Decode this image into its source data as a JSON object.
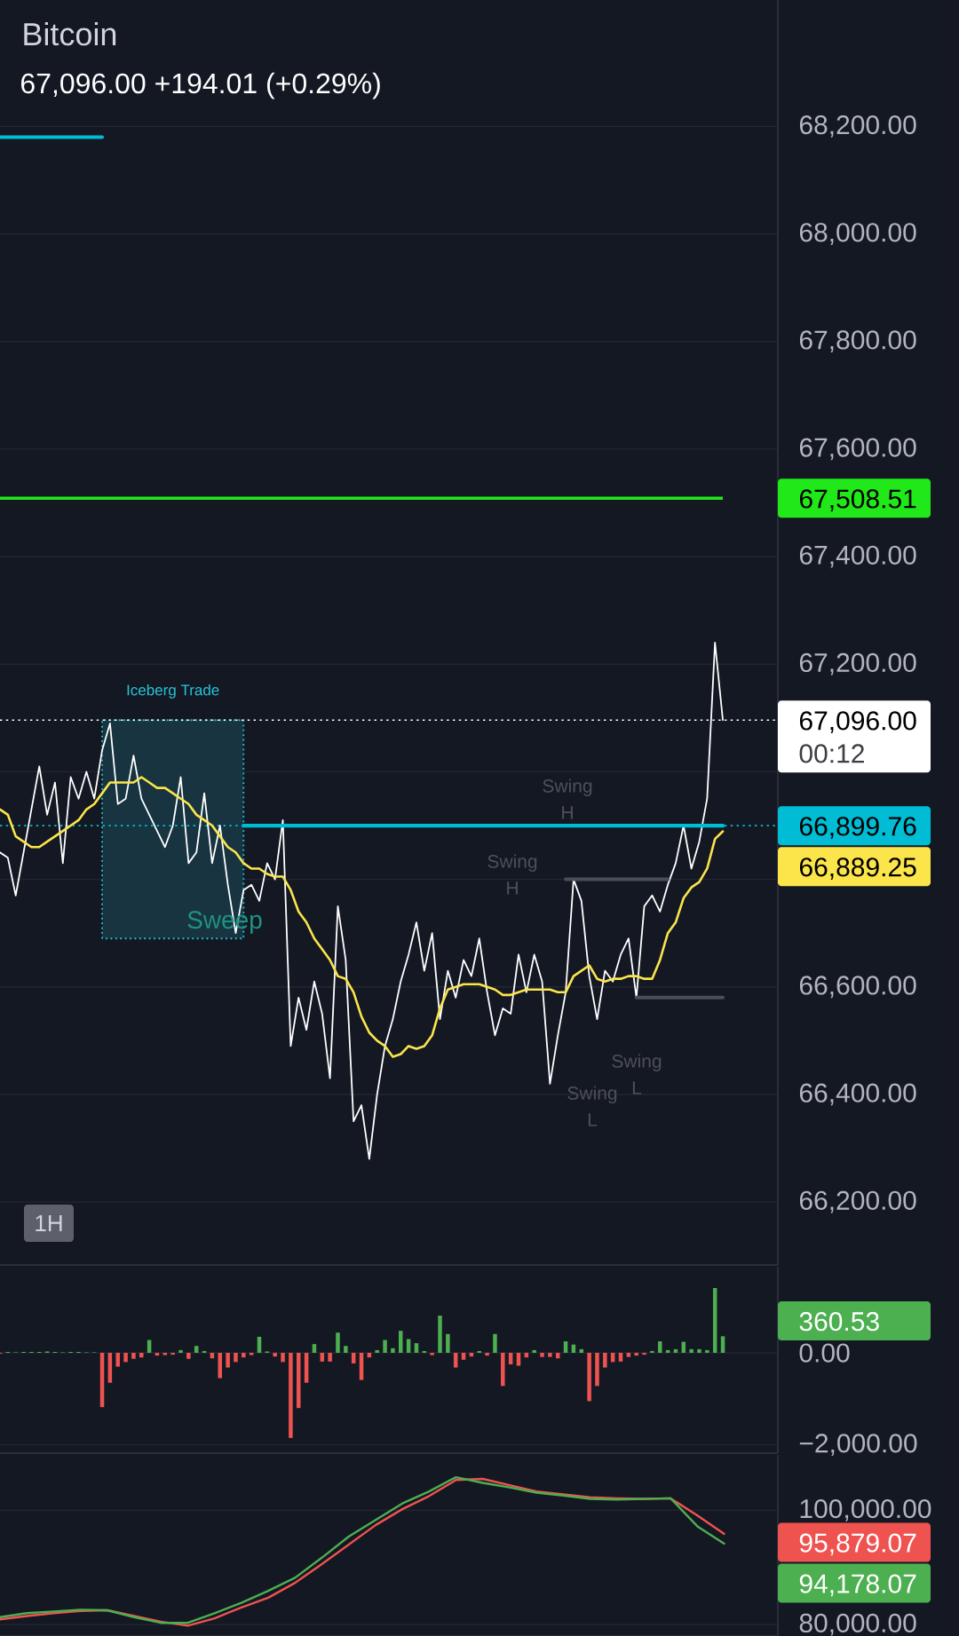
{
  "chart_data": [
    {
      "type": "line",
      "title": "Bitcoin",
      "subtitle": "67,096.00 +194.01 (+0.29%)",
      "categories": [
        null,
        null,
        null,
        null,
        null,
        null,
        null,
        null,
        null,
        null,
        null,
        null,
        null,
        null,
        null,
        null,
        null,
        null,
        null,
        null,
        null,
        null,
        null,
        null,
        null,
        null,
        null,
        null,
        null,
        null,
        null,
        null,
        null,
        null,
        null,
        null,
        null,
        null,
        null,
        null,
        null,
        null,
        null,
        null,
        null,
        null,
        null,
        null,
        null,
        null,
        null,
        null,
        null,
        null,
        null,
        null,
        null,
        null,
        null,
        null,
        null,
        null,
        null,
        null,
        null,
        null,
        null,
        null,
        null,
        null,
        null,
        null,
        null,
        null,
        null,
        null,
        null,
        null,
        null,
        null,
        null,
        null,
        null,
        null,
        null,
        null,
        null,
        null,
        null,
        null,
        null,
        null,
        null,
        null,
        null,
        null,
        null,
        null,
        null,
        null
      ],
      "series": [
        {
          "color": "#ffffff",
          "values": [
            66850,
            66840,
            66770,
            66850,
            66930,
            67010,
            66920,
            66980,
            66830,
            66990,
            66950,
            67000,
            66950,
            67040,
            67090,
            66940,
            66950,
            67030,
            66950,
            66920,
            66890,
            66860,
            66900,
            66990,
            66830,
            66850,
            66960,
            66830,
            66900,
            66790,
            66700,
            66780,
            66790,
            66760,
            66830,
            66800,
            66910,
            66490,
            66580,
            66520,
            66610,
            66550,
            66430,
            66750,
            66650,
            66350,
            66380,
            66280,
            66400,
            66490,
            66540,
            66610,
            66660,
            66720,
            66630,
            66700,
            66540,
            66630,
            66580,
            66650,
            66620,
            66690,
            66590,
            66510,
            66560,
            66550,
            66660,
            66590,
            66660,
            66610,
            66420,
            66510,
            66590,
            66800,
            66760,
            66620,
            66540,
            66630,
            66610,
            66660,
            66690,
            66580,
            66750,
            66770,
            66740,
            66790,
            66830,
            66900,
            66820,
            66870,
            66950,
            67240,
            67096,
            null,
            null,
            null,
            null,
            null,
            null,
            null
          ]
        },
        {
          "color": "#fbe54b",
          "values": [
            66930,
            66920,
            66880,
            66870,
            66860,
            66860,
            66870,
            66880,
            66890,
            66900,
            66910,
            66930,
            66940,
            66960,
            66980,
            66980,
            66980,
            66980,
            66990,
            66980,
            66970,
            66970,
            66960,
            66950,
            66940,
            66920,
            66910,
            66900,
            66880,
            66860,
            66850,
            66830,
            66820,
            66820,
            66810,
            66805,
            66805,
            66780,
            66740,
            66720,
            66690,
            66670,
            66650,
            66620,
            66615,
            66590,
            66545,
            66515,
            66500,
            66490,
            66470,
            66475,
            66490,
            66485,
            66490,
            66510,
            66560,
            66595,
            66600,
            66605,
            66605,
            66605,
            66600,
            66595,
            66585,
            66585,
            66590,
            66595,
            66595,
            66595,
            66595,
            66590,
            66590,
            66620,
            66630,
            66640,
            66615,
            66610,
            66615,
            66615,
            66620,
            66620,
            66615,
            66615,
            66650,
            66700,
            66720,
            66765,
            66785,
            66795,
            66820,
            66875,
            66889.25,
            null,
            null,
            null,
            null,
            null,
            null,
            null
          ]
        },
        {
          "color": "#00bcd4",
          "values": [
            68180,
            68180,
            68180,
            68180,
            68180,
            68180,
            68180,
            68180,
            68180,
            68180,
            68180,
            68180,
            68180,
            68180,
            null,
            null,
            null,
            null,
            null,
            null,
            null,
            null,
            null,
            null,
            null,
            null,
            null,
            null,
            null,
            null,
            null,
            null,
            null,
            null,
            null,
            null,
            null,
            null,
            null,
            null,
            null,
            null,
            null,
            null,
            null,
            null,
            null,
            null,
            null,
            null,
            null,
            null,
            null,
            null,
            null,
            null,
            null,
            null,
            null,
            null,
            null,
            null,
            null,
            null,
            null,
            null,
            null,
            null,
            null,
            null,
            null,
            null,
            null,
            null,
            null,
            null,
            null,
            null,
            null,
            null,
            null,
            null,
            null,
            null,
            null,
            null,
            null,
            null,
            null,
            null,
            null,
            null,
            null,
            null,
            null,
            null,
            null,
            null,
            null,
            null
          ]
        },
        {
          "color": "#00bcd4",
          "values": [
            null,
            null,
            null,
            null,
            null,
            null,
            null,
            null,
            null,
            null,
            null,
            null,
            null,
            null,
            null,
            null,
            null,
            null,
            null,
            null,
            null,
            null,
            null,
            null,
            null,
            null,
            null,
            null,
            null,
            null,
            null,
            66899.76,
            66899.76,
            66899.76,
            66899.76,
            66899.76,
            66899.76,
            66899.76,
            66899.76,
            66899.76,
            66899.76,
            66899.76,
            66899.76,
            66899.76,
            66899.76,
            66899.76,
            66899.76,
            66899.76,
            66899.76,
            66899.76,
            66899.76,
            66899.76,
            66899.76,
            66899.76,
            66899.76,
            66899.76,
            66899.76,
            66899.76,
            66899.76,
            66899.76,
            66899.76,
            66899.76,
            66899.76,
            66899.76,
            66899.76,
            66899.76,
            66899.76,
            66899.76,
            66899.76,
            66899.76,
            66899.76,
            66899.76,
            66899.76,
            66899.76,
            66899.76,
            66899.76,
            66899.76,
            66899.76,
            66899.76,
            66899.76,
            66899.76,
            66899.76,
            66899.76,
            66899.76,
            66899.76,
            66899.76,
            66899.76,
            66899.76,
            66899.76,
            66899.76,
            66899.76,
            66899.76,
            66899.76,
            null,
            null,
            null,
            null,
            null,
            null,
            null
          ]
        },
        {
          "color": "#4a4e59",
          "values": [
            null,
            null,
            null,
            null,
            null,
            null,
            null,
            null,
            null,
            null,
            null,
            null,
            null,
            null,
            null,
            null,
            null,
            null,
            null,
            null,
            null,
            null,
            null,
            null,
            null,
            null,
            null,
            null,
            null,
            null,
            null,
            null,
            null,
            null,
            null,
            null,
            null,
            null,
            null,
            null,
            null,
            null,
            null,
            null,
            null,
            null,
            null,
            null,
            null,
            null,
            null,
            null,
            null,
            null,
            null,
            null,
            null,
            null,
            null,
            null,
            null,
            null,
            null,
            null,
            null,
            null,
            null,
            null,
            null,
            null,
            null,
            null,
            66800,
            66800,
            66800,
            66800,
            66800,
            66800,
            66800,
            66800,
            66800,
            66800,
            66800,
            66800,
            66800,
            66800,
            null,
            null,
            null,
            null,
            null,
            null,
            null,
            null,
            null,
            null,
            null,
            null,
            null,
            null
          ]
        },
        {
          "color": "#4a4e59",
          "values": [
            null,
            null,
            null,
            null,
            null,
            null,
            null,
            null,
            null,
            null,
            null,
            null,
            null,
            null,
            null,
            null,
            null,
            null,
            null,
            null,
            null,
            null,
            null,
            null,
            null,
            null,
            null,
            null,
            null,
            null,
            null,
            null,
            null,
            null,
            null,
            null,
            null,
            null,
            null,
            null,
            null,
            null,
            null,
            null,
            null,
            null,
            null,
            null,
            null,
            null,
            null,
            null,
            null,
            null,
            null,
            null,
            null,
            null,
            null,
            null,
            null,
            null,
            null,
            null,
            null,
            null,
            null,
            null,
            null,
            null,
            null,
            null,
            null,
            null,
            null,
            null,
            null,
            null,
            null,
            null,
            null,
            66580,
            66580,
            66580,
            66580,
            66580,
            66580,
            66580,
            66580,
            66580,
            66580,
            66580,
            66580,
            null,
            null,
            null,
            null,
            null,
            null,
            null
          ]
        }
      ],
      "ylim": [
        66083,
        68435
      ],
      "yticks": [
        {
          "value": 68200,
          "label": "68,200.00"
        },
        {
          "value": 68000,
          "label": "68,000.00"
        },
        {
          "value": 67800,
          "label": "67,800.00"
        },
        {
          "value": 67600,
          "label": "67,600.00"
        },
        {
          "value": 67400,
          "label": "67,400.00"
        },
        {
          "value": 67200,
          "label": "67,200.00"
        },
        {
          "value": 67000,
          "label": null
        },
        {
          "value": 66800,
          "label": null
        },
        {
          "value": 66600,
          "label": "66,600.00"
        },
        {
          "value": 66400,
          "label": "66,400.00"
        },
        {
          "value": 66200,
          "label": "66,200.00"
        }
      ],
      "grid": "y",
      "tick_labels": "y",
      "ref_lines": [
        {
          "axis": "y",
          "value": 67508.51,
          "label": "67,508.51",
          "color": "#21e819"
        },
        {
          "axis": "y",
          "value": 67096,
          "label": "67,096.00",
          "color": "#ffffff",
          "line_style": "dotted"
        },
        {
          "axis": "y",
          "value": 66899.76,
          "label": "66,899.76",
          "color": "#00bcd4",
          "line_style": "dotted"
        }
      ],
      "bands": [
        {
          "axis": "y",
          "from": 66690,
          "to": 67096,
          "label": "Iceberg Trade",
          "color": "#26c6da"
        }
      ],
      "annotations": [
        "66,889.25",
        "00:12",
        "Sweep",
        "Swing H",
        "Swing H",
        "Swing L",
        "Swing L",
        "1H"
      ]
    },
    {
      "type": "bar",
      "categories": [
        null,
        null,
        null,
        null,
        null,
        null,
        null,
        null,
        null,
        null,
        null,
        null,
        null,
        null,
        null,
        null,
        null,
        null,
        null,
        null,
        null,
        null,
        null,
        null,
        null,
        null,
        null,
        null,
        null,
        null,
        null,
        null,
        null,
        null,
        null,
        null,
        null,
        null,
        null,
        null,
        null,
        null,
        null,
        null,
        null,
        null,
        null,
        null,
        null,
        null,
        null,
        null,
        null,
        null,
        null,
        null,
        null,
        null,
        null,
        null,
        null,
        null,
        null,
        null,
        null,
        null,
        null,
        null,
        null,
        null,
        null,
        null,
        null,
        null,
        null,
        null,
        null,
        null,
        null,
        null,
        null,
        null,
        null,
        null,
        null,
        null,
        null,
        null,
        null,
        null,
        null,
        null,
        null,
        null,
        null,
        null,
        null,
        null,
        null,
        null
      ],
      "values": [
        -20,
        20,
        10,
        20,
        20,
        20,
        30,
        20,
        10,
        20,
        20,
        10,
        10,
        -1180,
        -650,
        -300,
        -200,
        -130,
        -100,
        280,
        -60,
        -50,
        -40,
        60,
        -130,
        150,
        40,
        -120,
        -550,
        -320,
        -200,
        -100,
        -50,
        350,
        30,
        -80,
        -200,
        -1850,
        -1200,
        -650,
        190,
        -190,
        -190,
        440,
        150,
        -230,
        -590,
        -100,
        60,
        280,
        100,
        480,
        300,
        210,
        40,
        -50,
        810,
        410,
        -320,
        -150,
        -80,
        40,
        -60,
        410,
        -720,
        -250,
        -280,
        -100,
        60,
        -90,
        -90,
        -120,
        250,
        180,
        80,
        -1050,
        -720,
        -320,
        -200,
        -190,
        -90,
        -60,
        -40,
        40,
        250,
        60,
        80,
        240,
        80,
        80,
        60,
        1410,
        360.53,
        null,
        null,
        null,
        null,
        null,
        null,
        null
      ],
      "colors": [
        "#ef5350",
        "#4caf50",
        "#4caf50",
        "#4caf50",
        "#4caf50",
        "#4caf50",
        "#4caf50",
        "#4caf50",
        "#4caf50",
        "#4caf50",
        "#4caf50",
        "#4caf50",
        "#4caf50",
        "#ef5350",
        "#ef5350",
        "#ef5350",
        "#ef5350",
        "#ef5350",
        "#ef5350",
        "#4caf50",
        "#ef5350",
        "#ef5350",
        "#ef5350",
        "#4caf50",
        "#ef5350",
        "#4caf50",
        "#4caf50",
        "#ef5350",
        "#ef5350",
        "#ef5350",
        "#ef5350",
        "#ef5350",
        "#ef5350",
        "#4caf50",
        "#4caf50",
        "#ef5350",
        "#ef5350",
        "#ef5350",
        "#ef5350",
        "#ef5350",
        "#4caf50",
        "#ef5350",
        "#ef5350",
        "#4caf50",
        "#4caf50",
        "#ef5350",
        "#ef5350",
        "#ef5350",
        "#4caf50",
        "#4caf50",
        "#4caf50",
        "#4caf50",
        "#4caf50",
        "#4caf50",
        "#4caf50",
        "#ef5350",
        "#4caf50",
        "#4caf50",
        "#ef5350",
        "#ef5350",
        "#ef5350",
        "#4caf50",
        "#ef5350",
        "#4caf50",
        "#ef5350",
        "#ef5350",
        "#ef5350",
        "#ef5350",
        "#4caf50",
        "#ef5350",
        "#ef5350",
        "#ef5350",
        "#4caf50",
        "#4caf50",
        "#4caf50",
        "#ef5350",
        "#ef5350",
        "#ef5350",
        "#ef5350",
        "#ef5350",
        "#ef5350",
        "#ef5350",
        "#ef5350",
        "#4caf50",
        "#4caf50",
        "#4caf50",
        "#4caf50",
        "#4caf50",
        "#4caf50",
        "#4caf50",
        "#4caf50",
        "#4caf50",
        "#4caf50",
        null,
        null,
        null,
        null,
        null,
        null,
        null
      ],
      "ylim": [
        -2181,
        1873
      ],
      "yticks": [
        {
          "value": 0,
          "label": "0.00"
        },
        {
          "value": -2000,
          "label": "−2,000.00"
        }
      ],
      "grid": "y",
      "tick_labels": "y",
      "annotations": [
        "360.53"
      ]
    },
    {
      "type": "line",
      "categories": [
        null,
        null,
        null,
        null,
        null,
        null,
        null,
        null,
        null,
        null,
        null,
        null,
        null,
        null,
        null,
        null,
        null,
        null,
        null,
        null,
        null,
        null,
        null,
        null,
        null,
        null,
        null,
        null,
        null,
        null
      ],
      "series": [
        {
          "color": "#ef5350",
          "values": [
            80900,
            81500,
            82000,
            82400,
            82500,
            81500,
            80500,
            79800,
            81100,
            83000,
            84700,
            87300,
            90600,
            94000,
            97400,
            100200,
            102500,
            105300,
            105500,
            104400,
            103300,
            102800,
            102300,
            102100,
            102000,
            102100,
            99100,
            95879.07,
            null,
            null
          ]
        },
        {
          "color": "#4caf50",
          "values": [
            81300,
            82000,
            82300,
            82600,
            82500,
            81300,
            80300,
            80300,
            82000,
            83800,
            85900,
            88200,
            91700,
            95400,
            98300,
            101200,
            103300,
            105800,
            104800,
            104000,
            103100,
            102600,
            102000,
            101900,
            102000,
            102100,
            97200,
            94178.07,
            null,
            null
          ]
        }
      ],
      "ylim": [
        78000,
        109700
      ],
      "yticks": [
        {
          "value": 80000,
          "label": "80,000.00"
        },
        {
          "value": 100000,
          "label": "100,000.00"
        }
      ],
      "grid": "y",
      "tick_labels": "y",
      "annotations": [
        "95,879.07",
        "94,178.07"
      ]
    }
  ]
}
